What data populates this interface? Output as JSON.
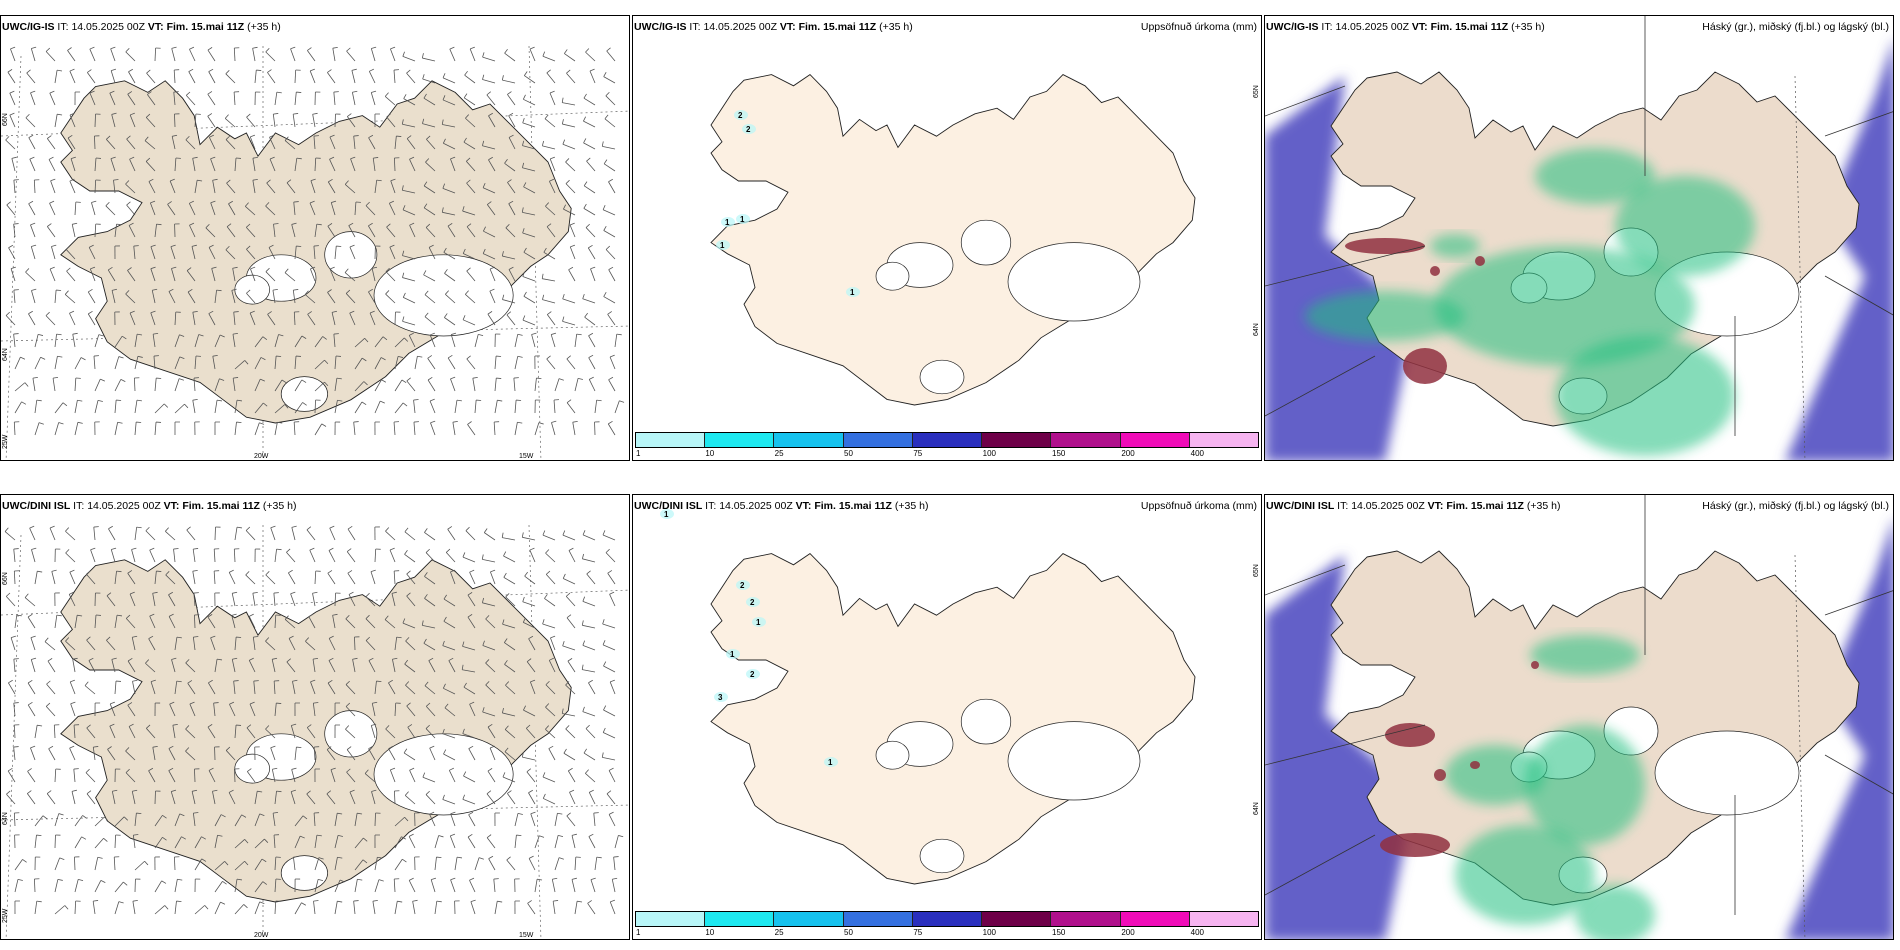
{
  "rows": [
    {
      "model": "UWC/IG-IS",
      "wind": {
        "model": "UWC/IG-IS",
        "it_label": "IT:",
        "it": "14.05.2025 00Z",
        "vt_label": "VT:",
        "vt": "Fim. 15.mai 11Z",
        "lead": "(+35 h)",
        "lat_labels": [
          "66N",
          "64N"
        ],
        "lon_labels": [
          "25W",
          "20W",
          "15W"
        ]
      },
      "precip": {
        "model": "UWC/IG-IS",
        "it_label": "IT:",
        "it": "14.05.2025 00Z",
        "vt_label": "VT:",
        "vt": "Fim. 15.mai 11Z",
        "lead": "(+35 h)",
        "title": "Uppsöfnuð úrkoma (mm)",
        "lat_labels": [
          "65N",
          "64N"
        ],
        "annotations": [
          "2",
          "2",
          "1",
          "1",
          "1",
          "1"
        ]
      },
      "cloud": {
        "model": "UWC/IG-IS",
        "it_label": "IT:",
        "it": "14.05.2025 00Z",
        "vt_label": "VT:",
        "vt": "Fim. 15.mai 11Z",
        "lead": "(+35 h)",
        "title": "Háský (gr.), miðský (fj.bl.) og lágský (bl.)"
      }
    },
    {
      "model": "UWC/DINI ISL",
      "wind": {
        "model": "UWC/DINI ISL",
        "it_label": "IT:",
        "it": "14.05.2025 00Z",
        "vt_label": "VT:",
        "vt": "Fim. 15.mai 11Z",
        "lead": "(+35 h)",
        "lat_labels": [
          "66N",
          "64N"
        ],
        "lon_labels": [
          "25W",
          "20W",
          "15W"
        ]
      },
      "precip": {
        "model": "UWC/DINI ISL",
        "it_label": "IT:",
        "it": "14.05.2025 00Z",
        "vt_label": "VT:",
        "vt": "Fim. 15.mai 11Z",
        "lead": "(+35 h)",
        "title": "Uppsöfnuð úrkoma (mm)",
        "lat_labels": [
          "65N",
          "64N"
        ],
        "annotations": [
          "1",
          "2",
          "2",
          "1",
          "1",
          "2",
          "3",
          "1"
        ]
      },
      "cloud": {
        "model": "UWC/DINI ISL",
        "it_label": "IT:",
        "it": "14.05.2025 00Z",
        "vt_label": "VT:",
        "vt": "Fim. 15.mai 11Z",
        "lead": "(+35 h)",
        "title": "Háský (gr.), miðský (fj.bl.) og lágský (bl.)"
      }
    }
  ],
  "colorbar": {
    "labels": [
      "1",
      "10",
      "25",
      "50",
      "75",
      "100",
      "150",
      "200",
      "400"
    ],
    "colors": [
      "#b8f6f8",
      "#1ee8f0",
      "#16c2ee",
      "#3470e0",
      "#2a2fbe",
      "#6e0048",
      "#b0108c",
      "#f00cb8",
      "#f6b4f0"
    ]
  },
  "colors": {
    "land_wind": "#eadfcd",
    "land_precip": "#fcf0e2",
    "land_cloud": "#ecdccc",
    "low_cloud": "#6460c8",
    "mid_cloud": "#20c080",
    "high_cloud": "#903040"
  }
}
